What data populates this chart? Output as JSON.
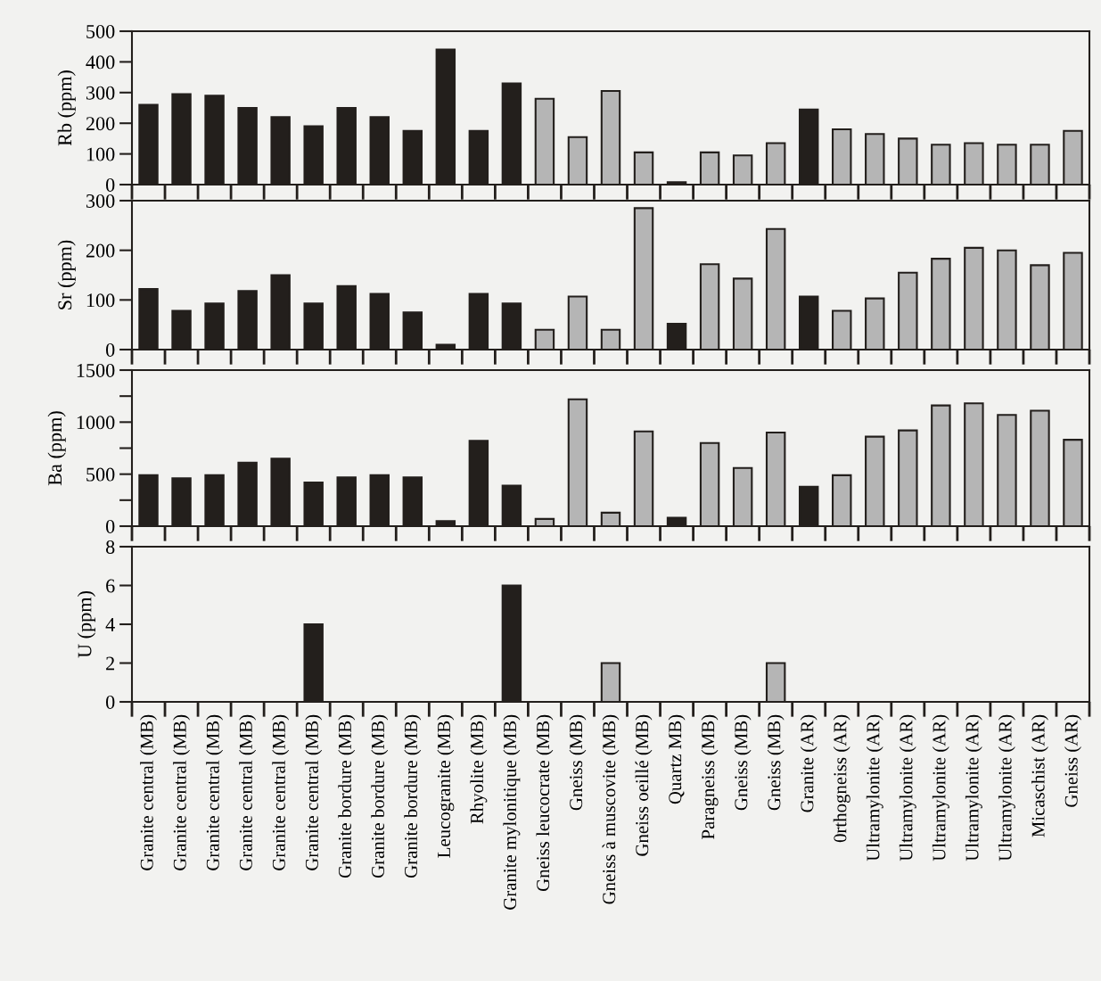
{
  "chart_data": [
    {
      "type": "bar",
      "ylabel": "Rb (ppm)",
      "tick_labels": "y",
      "ylim": [
        0,
        500
      ],
      "yticks": [
        0,
        100,
        200,
        300,
        400,
        500
      ],
      "categories": [
        null,
        null,
        null,
        null,
        null,
        null,
        null,
        null,
        null,
        null,
        null,
        null,
        null,
        null,
        null,
        null,
        null,
        null,
        null,
        null,
        null,
        null,
        null,
        null,
        null,
        null,
        null,
        null,
        null
      ],
      "values": [
        260,
        295,
        290,
        250,
        220,
        190,
        250,
        220,
        175,
        440,
        175,
        330,
        280,
        155,
        305,
        105,
        8,
        105,
        95,
        135,
        245,
        180,
        165,
        150,
        130,
        135,
        130,
        130,
        175
      ],
      "colors": [
        "#231f1c",
        "#231f1c",
        "#231f1c",
        "#231f1c",
        "#231f1c",
        "#231f1c",
        "#231f1c",
        "#231f1c",
        "#231f1c",
        "#231f1c",
        "#231f1c",
        "#231f1c",
        "#b5b5b5",
        "#b5b5b5",
        "#b5b5b5",
        "#b5b5b5",
        "#231f1c",
        "#b5b5b5",
        "#b5b5b5",
        "#b5b5b5",
        "#231f1c",
        "#b5b5b5",
        "#b5b5b5",
        "#b5b5b5",
        "#b5b5b5",
        "#b5b5b5",
        "#b5b5b5",
        "#b5b5b5",
        "#b5b5b5"
      ]
    },
    {
      "type": "bar",
      "ylabel": "Sr (ppm)",
      "tick_labels": "y",
      "ylim": [
        0,
        300
      ],
      "yticks": [
        0,
        100,
        200,
        300
      ],
      "categories": [
        null,
        null,
        null,
        null,
        null,
        null,
        null,
        null,
        null,
        null,
        null,
        null,
        null,
        null,
        null,
        null,
        null,
        null,
        null,
        null,
        null,
        null,
        null,
        null,
        null,
        null,
        null,
        null,
        null
      ],
      "values": [
        122,
        78,
        93,
        118,
        150,
        93,
        128,
        112,
        75,
        10,
        112,
        93,
        40,
        107,
        40,
        285,
        52,
        172,
        143,
        243,
        107,
        78,
        103,
        155,
        183,
        205,
        200,
        170,
        195
      ],
      "colors": [
        "#231f1c",
        "#231f1c",
        "#231f1c",
        "#231f1c",
        "#231f1c",
        "#231f1c",
        "#231f1c",
        "#231f1c",
        "#231f1c",
        "#231f1c",
        "#231f1c",
        "#231f1c",
        "#b5b5b5",
        "#b5b5b5",
        "#b5b5b5",
        "#b5b5b5",
        "#231f1c",
        "#b5b5b5",
        "#b5b5b5",
        "#b5b5b5",
        "#231f1c",
        "#b5b5b5",
        "#b5b5b5",
        "#b5b5b5",
        "#b5b5b5",
        "#b5b5b5",
        "#b5b5b5",
        "#b5b5b5",
        "#b5b5b5"
      ]
    },
    {
      "type": "bar",
      "ylabel": "Ba (ppm)",
      "tick_labels": "y",
      "ylim": [
        0,
        1500
      ],
      "yticks": [
        0,
        {
          "value": 250,
          "label": null
        },
        500,
        {
          "value": 750,
          "label": null
        },
        1000,
        {
          "value": 1250,
          "label": null
        },
        1500
      ],
      "categories": [
        null,
        null,
        null,
        null,
        null,
        null,
        null,
        null,
        null,
        null,
        null,
        null,
        null,
        null,
        null,
        null,
        null,
        null,
        null,
        null,
        null,
        null,
        null,
        null,
        null,
        null,
        null,
        null,
        null
      ],
      "values": [
        490,
        460,
        490,
        610,
        650,
        420,
        470,
        490,
        470,
        50,
        820,
        390,
        70,
        1220,
        130,
        910,
        80,
        800,
        560,
        900,
        380,
        490,
        860,
        920,
        1160,
        1180,
        1070,
        1110,
        830
      ],
      "colors": [
        "#231f1c",
        "#231f1c",
        "#231f1c",
        "#231f1c",
        "#231f1c",
        "#231f1c",
        "#231f1c",
        "#231f1c",
        "#231f1c",
        "#231f1c",
        "#231f1c",
        "#231f1c",
        "#b5b5b5",
        "#b5b5b5",
        "#b5b5b5",
        "#b5b5b5",
        "#231f1c",
        "#b5b5b5",
        "#b5b5b5",
        "#b5b5b5",
        "#231f1c",
        "#b5b5b5",
        "#b5b5b5",
        "#b5b5b5",
        "#b5b5b5",
        "#b5b5b5",
        "#b5b5b5",
        "#b5b5b5",
        "#b5b5b5"
      ]
    },
    {
      "type": "bar",
      "ylabel": "U (ppm)",
      "ylim": [
        0,
        8
      ],
      "yticks": [
        0,
        2,
        4,
        6,
        8
      ],
      "categories": [
        "Granite central (MB)",
        "Granite central (MB)",
        "Granite central (MB)",
        "Granite central (MB)",
        "Granite central (MB)",
        "Granite central (MB)",
        "Granite bordure (MB)",
        "Granite bordure (MB)",
        "Granite bordure (MB)",
        "Leucogranite (MB)",
        "Rhyolite (MB)",
        "Granite mylonitique (MB)",
        "Gneiss leucocrate (MB)",
        "Gneiss (MB)",
        "Gneiss à muscovite (MB)",
        "Gneiss oeillé (MB)",
        "Quartz MB)",
        "Paragneiss (MB)",
        "Gneiss (MB)",
        "Gneiss (MB)",
        "Granite (AR)",
        "0rthogneiss (AR)",
        "Ultramylonite (AR)",
        "Ultramylonite (AR)",
        "Ultramylonite (AR)",
        "Ultramylonite (AR)",
        "Ultramylonite (AR)",
        "Micaschist (AR)",
        "Gneiss (AR)"
      ],
      "values": [
        null,
        null,
        null,
        null,
        null,
        4,
        null,
        null,
        null,
        null,
        null,
        6,
        null,
        null,
        2,
        null,
        null,
        null,
        null,
        2,
        null,
        null,
        null,
        null,
        null,
        null,
        null,
        null,
        null
      ],
      "colors": [
        "#231f1c",
        "#231f1c",
        "#231f1c",
        "#231f1c",
        "#231f1c",
        "#231f1c",
        "#231f1c",
        "#231f1c",
        "#231f1c",
        "#231f1c",
        "#231f1c",
        "#231f1c",
        "#b5b5b5",
        "#b5b5b5",
        "#b5b5b5",
        "#b5b5b5",
        "#231f1c",
        "#b5b5b5",
        "#b5b5b5",
        "#b5b5b5",
        "#231f1c",
        "#b5b5b5",
        "#b5b5b5",
        "#b5b5b5",
        "#b5b5b5",
        "#b5b5b5",
        "#b5b5b5",
        "#b5b5b5",
        "#b5b5b5"
      ]
    }
  ]
}
